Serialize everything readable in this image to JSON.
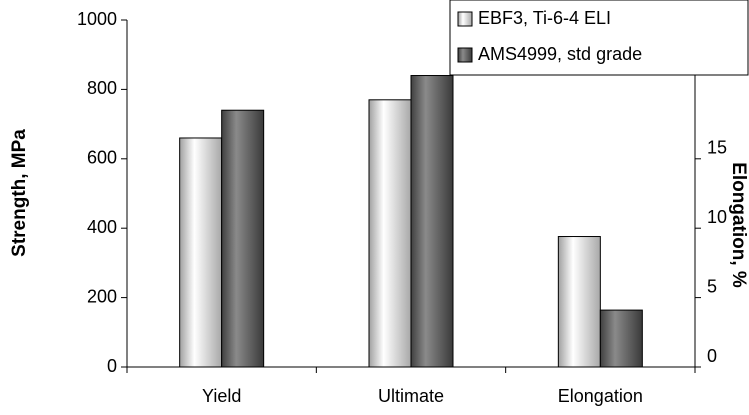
{
  "chart_data": {
    "type": "bar",
    "categories": [
      "Yield",
      "Ultimate",
      "Elongation"
    ],
    "y_label": "Strength, MPa",
    "y2_label": "Elongation, %",
    "ylim": [
      0,
      1000
    ],
    "yticks": [
      0,
      200,
      400,
      600,
      800,
      1000
    ],
    "y2lim": [
      0,
      25
    ],
    "y2ticks": [
      0,
      5,
      10,
      15
    ],
    "legend": "top-right",
    "series": [
      {
        "name": "EBF3, Ti-6-4 ELI",
        "color": "#c8c8c8",
        "values": [
          660,
          770,
          null
        ],
        "y2_values": [
          null,
          null,
          9.4
        ]
      },
      {
        "name": "AMS4999, std grade",
        "color": "#606060",
        "values": [
          740,
          840,
          null
        ],
        "y2_values": [
          null,
          null,
          4.1
        ]
      }
    ]
  }
}
